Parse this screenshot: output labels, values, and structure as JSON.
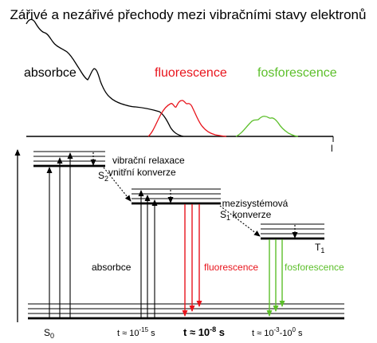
{
  "title": "Zářivé a nezářivé přechody mezi vibračními stavy elektronů",
  "spectrum": {
    "labels": {
      "absorbance": "absorbce",
      "fluorescence": "fluorescence",
      "phosphorescence": "fosforescence",
      "axis": "l"
    }
  },
  "states": {
    "s0": {
      "main": "S",
      "sub": "0"
    },
    "s1": {
      "main": "S",
      "sub": "1"
    },
    "s2": {
      "main": "S",
      "sub": "2"
    },
    "t1": {
      "main": "T",
      "sub": "1"
    }
  },
  "processes": {
    "vibrational_relaxation": "vibrační relaxace",
    "internal_conversion": "vnitřní konverze",
    "intersystem_line1": "mezisystémová",
    "intersystem_line2": "konverze",
    "absorbance": "absorbce",
    "fluorescence": "fluorescence",
    "phosphorescence": "fosforescence"
  },
  "timescales": {
    "absorption": {
      "prefix": "t ≈ 10",
      "exp": "-15",
      "unit": " s"
    },
    "fluorescence": {
      "prefix": "t ≈ 10",
      "exp": "-8",
      "unit": " s"
    },
    "phosphorescence": {
      "prefix": "t ≈ 10",
      "exp": "-3",
      "mid": "-10",
      "exp2": "0",
      "unit": " s"
    }
  },
  "colors": {
    "black": "#000000",
    "fluorescence": "#e8141c",
    "phosphorescence": "#5cbf2a"
  }
}
